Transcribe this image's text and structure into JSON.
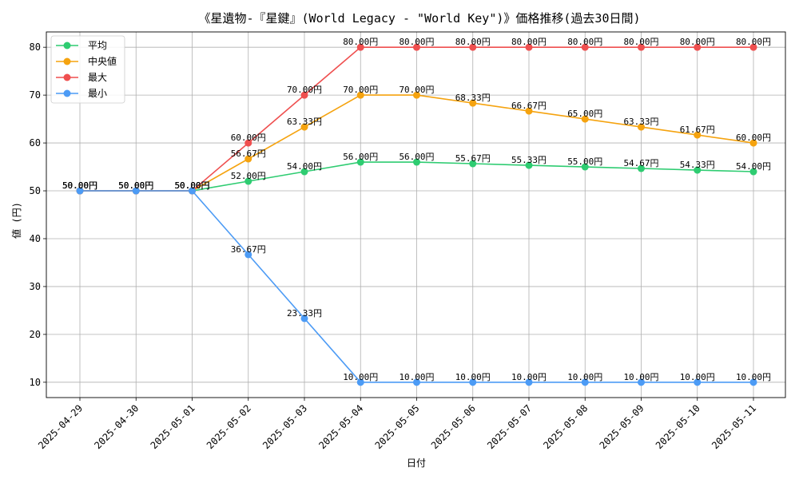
{
  "chart_data": {
    "type": "line",
    "title": "《星遺物-『星鍵』(World Legacy - \"World Key\")》価格推移(過去30日間)",
    "xlabel": "日付",
    "ylabel": "値 (円)",
    "ylim": [
      6.8,
      83.2
    ],
    "yticks": [
      10,
      20,
      30,
      40,
      50,
      60,
      70,
      80
    ],
    "grid": true,
    "legend_position": "top-left",
    "value_suffix": "円",
    "categories": [
      "2025-04-29",
      "2025-04-30",
      "2025-05-01",
      "2025-05-02",
      "2025-05-03",
      "2025-05-04",
      "2025-05-05",
      "2025-05-06",
      "2025-05-07",
      "2025-05-08",
      "2025-05-09",
      "2025-05-10",
      "2025-05-11"
    ],
    "series": [
      {
        "name": "平均",
        "color": "#2ecc71",
        "values": [
          50.0,
          50.0,
          50.0,
          52.0,
          54.0,
          56.0,
          56.0,
          55.67,
          55.33,
          55.0,
          54.67,
          54.33,
          54.0
        ]
      },
      {
        "name": "中央値",
        "color": "#f5a30f",
        "values": [
          50.0,
          50.0,
          50.0,
          56.67,
          63.33,
          70.0,
          70.0,
          68.33,
          66.67,
          65.0,
          63.33,
          61.67,
          60.0
        ]
      },
      {
        "name": "最大",
        "color": "#ef4f4f",
        "values": [
          50.0,
          50.0,
          50.0,
          60.0,
          70.0,
          80.0,
          80.0,
          80.0,
          80.0,
          80.0,
          80.0,
          80.0,
          80.0
        ]
      },
      {
        "name": "最小",
        "color": "#4c9bf5",
        "values": [
          50.0,
          50.0,
          50.0,
          36.67,
          23.33,
          10.0,
          10.0,
          10.0,
          10.0,
          10.0,
          10.0,
          10.0,
          10.0
        ]
      }
    ]
  }
}
